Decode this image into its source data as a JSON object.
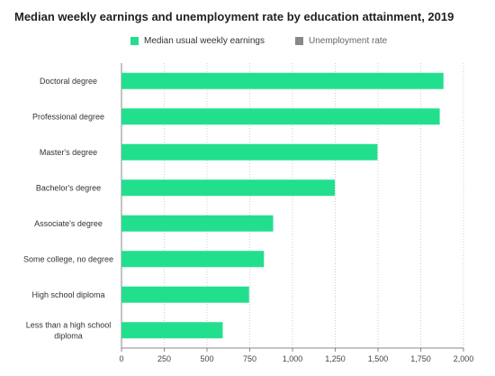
{
  "chart_data": {
    "type": "bar",
    "orientation": "horizontal",
    "title": "Median weekly earnings and unemployment rate by education attainment, 2019",
    "categories": [
      "Doctoral degree",
      "Professional degree",
      "Master's degree",
      "Bachelor's degree",
      "Associate's degree",
      "Some college, no degree",
      "High school diploma",
      "Less than a high school diploma"
    ],
    "series": [
      {
        "name": "Median usual weekly earnings",
        "color": "#22df8d",
        "visible": true,
        "values": [
          1883,
          1861,
          1497,
          1248,
          887,
          833,
          746,
          592
        ]
      },
      {
        "name": "Unemployment rate",
        "color": "#888888",
        "visible": false
      }
    ],
    "xlim": [
      0,
      2000
    ],
    "xticks": [
      0,
      250,
      500,
      750,
      1000,
      1250,
      1500,
      1750,
      2000
    ],
    "xtick_labels": [
      "0",
      "250",
      "500",
      "750",
      "1,000",
      "1,250",
      "1,500",
      "1,750",
      "2,000"
    ],
    "xlabel": "",
    "ylabel": "",
    "grid": "vertical dotted",
    "legend": "top"
  }
}
